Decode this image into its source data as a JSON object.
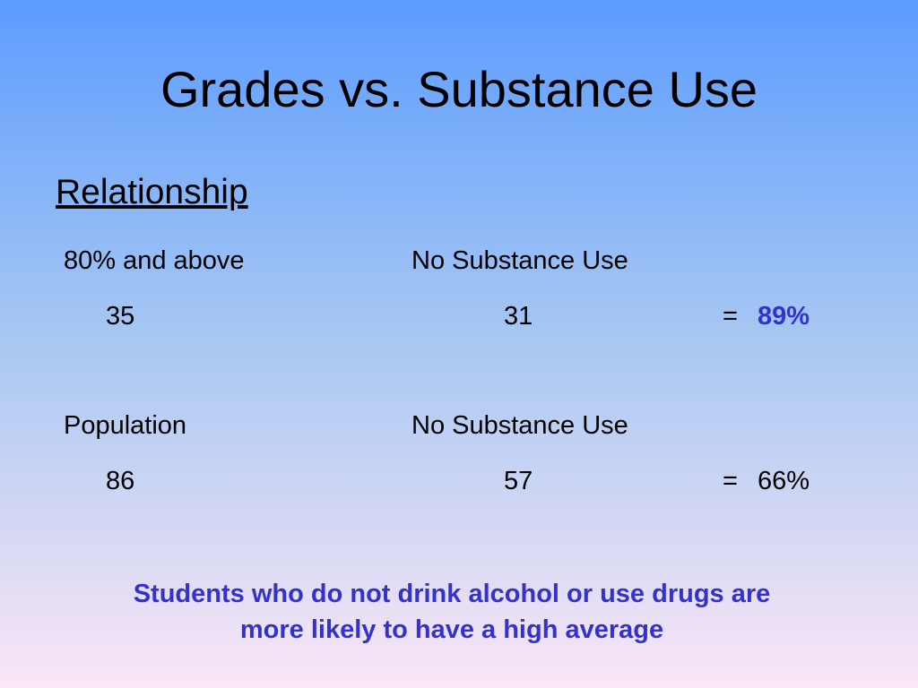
{
  "title": "Grades vs. Substance Use",
  "subtitle": "Relationship",
  "rows": [
    {
      "label": "80% and above",
      "condition": "No Substance Use",
      "count": "35",
      "subset": "31",
      "equals": "=",
      "result": "89%"
    },
    {
      "label": "Population",
      "condition": "No Substance Use",
      "count": "86",
      "subset": "57",
      "equals": "=",
      "result": "66%"
    }
  ],
  "conclusion": [
    "Students who do not drink alcohol or use drugs are",
    "more likely to have a high average"
  ]
}
